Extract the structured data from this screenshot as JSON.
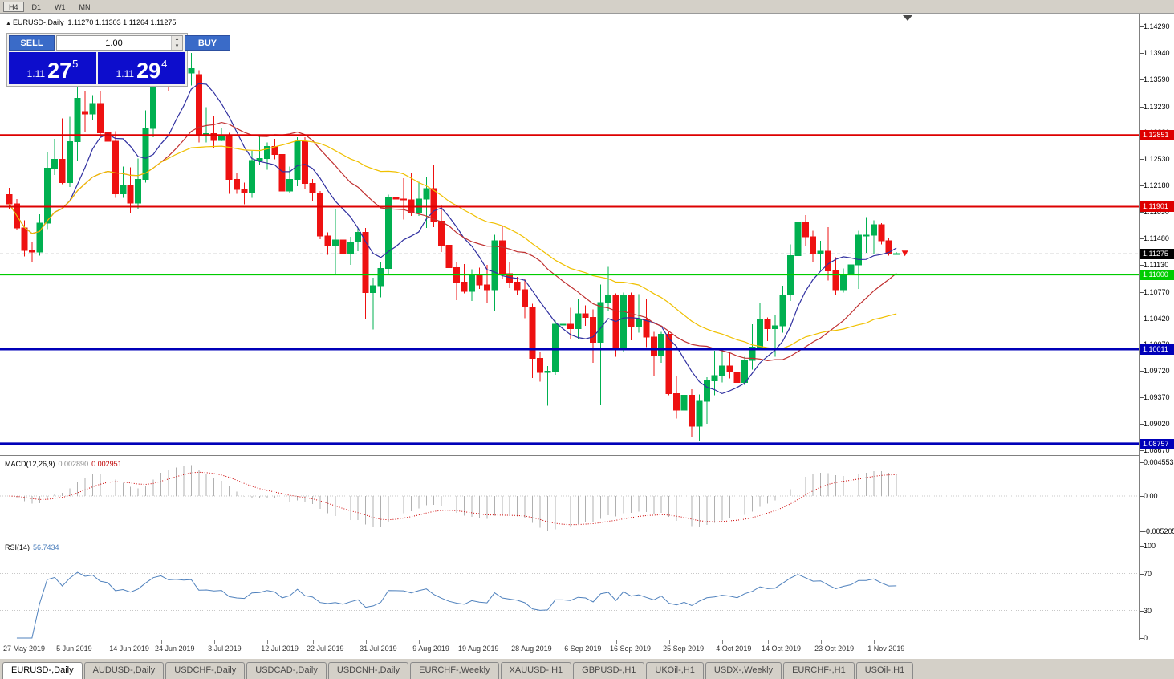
{
  "window": {
    "title_symbol": "EURUSD-,Daily",
    "title_ohlc": "1.11270 1.11303 1.11264 1.11275"
  },
  "toolbar": {
    "timeframes": [
      {
        "label": "H4",
        "pressed": true
      },
      {
        "label": "D1",
        "pressed": false
      },
      {
        "label": "W1",
        "pressed": false
      },
      {
        "label": "MN",
        "pressed": false
      }
    ]
  },
  "trade_panel": {
    "sell_label": "SELL",
    "buy_label": "BUY",
    "volume": "1.00",
    "sell_price": {
      "prefix": "1.11",
      "big": "27",
      "sup": "5"
    },
    "buy_price": {
      "prefix": "1.11",
      "big": "29",
      "sup": "4"
    },
    "button_color": "#3a6bc8",
    "price_box_color": "#0d0dcc"
  },
  "colors": {
    "bull": "#00b050",
    "bear": "#ee1111",
    "ma_fast": "#3030a0",
    "ma_mid": "#c03030",
    "ma_slow": "#f0c000",
    "macd_hist": "#b0b0b0",
    "macd_signal": "#cc0000",
    "rsi_line": "#4f81bd",
    "line_red": "#dd0000",
    "line_green": "#00cc00",
    "line_blue": "#0000b8",
    "current_price_bg": "#000000",
    "bid_line": "#a8a8a8"
  },
  "chart_data": {
    "type": "candlestick",
    "symbol": "EURUSD",
    "timeframe": "Daily",
    "title": "EURUSD-,Daily 1.11270 1.11303 1.11264 1.11275",
    "current_price": "1.11275",
    "price_axis_ticks": [
      "1.14290",
      "1.13940",
      "1.13590",
      "1.13230",
      "1.12880",
      "1.12530",
      "1.12180",
      "1.11830",
      "1.11480",
      "1.11130",
      "1.10770",
      "1.10420",
      "1.10070",
      "1.09720",
      "1.09370",
      "1.09020",
      "1.08670"
    ],
    "hlines": [
      {
        "price": "1.12851",
        "color_key": "line_red",
        "width": 2
      },
      {
        "price": "1.11901",
        "color_key": "line_red",
        "width": 2
      },
      {
        "price": "1.11000",
        "color_key": "line_green",
        "width": 2
      },
      {
        "price": "1.10011",
        "color_key": "line_blue",
        "width": 3
      },
      {
        "price": "1.08757",
        "color_key": "line_blue",
        "width": 3
      }
    ],
    "overlays": [
      {
        "name": "ma-fast-blue",
        "period": 8,
        "color_key": "ma_fast"
      },
      {
        "name": "ma-mid-red",
        "period": 21,
        "color_key": "ma_mid"
      },
      {
        "name": "ma-slow-yellow",
        "period": 34,
        "color_key": "ma_slow"
      }
    ],
    "indicators": {
      "macd": {
        "name": "MACD(12,26,9)",
        "value_main": "0.002890",
        "value_signal": "0.002951",
        "params": [
          12,
          26,
          9
        ],
        "axis": [
          "0.0045536",
          "0.00",
          "-0.0052052"
        ]
      },
      "rsi": {
        "name": "RSI(14)",
        "value": "56.7434",
        "period": 14,
        "axis": [
          "100",
          "70",
          "30",
          "0"
        ],
        "levels": [
          70,
          30
        ]
      }
    },
    "x_labels": [
      {
        "i": 0,
        "label": "27 May 2019"
      },
      {
        "i": 7,
        "label": "5 Jun 2019"
      },
      {
        "i": 14,
        "label": "14 Jun 2019"
      },
      {
        "i": 20,
        "label": "24 Jun 2019"
      },
      {
        "i": 27,
        "label": "3 Jul 2019"
      },
      {
        "i": 34,
        "label": "12 Jul 2019"
      },
      {
        "i": 40,
        "label": "22 Jul 2019"
      },
      {
        "i": 47,
        "label": "31 Jul 2019"
      },
      {
        "i": 54,
        "label": "9 Aug 2019"
      },
      {
        "i": 60,
        "label": "19 Aug 2019"
      },
      {
        "i": 67,
        "label": "28 Aug 2019"
      },
      {
        "i": 74,
        "label": "6 Sep 2019"
      },
      {
        "i": 80,
        "label": "16 Sep 2019"
      },
      {
        "i": 87,
        "label": "25 Sep 2019"
      },
      {
        "i": 94,
        "label": "4 Oct 2019"
      },
      {
        "i": 100,
        "label": "14 Oct 2019"
      },
      {
        "i": 107,
        "label": "23 Oct 2019"
      },
      {
        "i": 114,
        "label": "1 Nov 2019"
      }
    ],
    "candles": [
      [
        1.1206,
        1.1215,
        1.1187,
        1.1194
      ],
      [
        1.1194,
        1.12,
        1.1159,
        1.1162
      ],
      [
        1.1162,
        1.1172,
        1.1124,
        1.1132
      ],
      [
        1.1132,
        1.1144,
        1.1116,
        1.113
      ],
      [
        1.113,
        1.118,
        1.1125,
        1.1168
      ],
      [
        1.1168,
        1.1263,
        1.116,
        1.1241
      ],
      [
        1.1241,
        1.128,
        1.1232,
        1.1253
      ],
      [
        1.1253,
        1.1307,
        1.122,
        1.1222
      ],
      [
        1.1222,
        1.1309,
        1.1216,
        1.1276
      ],
      [
        1.1276,
        1.1348,
        1.1251,
        1.1334
      ],
      [
        1.1316,
        1.1344,
        1.1289,
        1.1313
      ],
      [
        1.1313,
        1.1338,
        1.1305,
        1.1327
      ],
      [
        1.1327,
        1.1344,
        1.1282,
        1.1288
      ],
      [
        1.1288,
        1.1298,
        1.1268,
        1.1277
      ],
      [
        1.1277,
        1.129,
        1.1202,
        1.1207
      ],
      [
        1.1207,
        1.1243,
        1.1202,
        1.1219
      ],
      [
        1.1219,
        1.1242,
        1.1181,
        1.1195
      ],
      [
        1.1195,
        1.1254,
        1.1187,
        1.1226
      ],
      [
        1.1226,
        1.1318,
        1.1222,
        1.1294
      ],
      [
        1.1294,
        1.1378,
        1.1282,
        1.1369
      ],
      [
        1.1369,
        1.1403,
        1.1362,
        1.1399
      ],
      [
        1.1399,
        1.1412,
        1.1344,
        1.1366
      ],
      [
        1.1366,
        1.1391,
        1.135,
        1.1373
      ],
      [
        1.1373,
        1.1388,
        1.1361,
        1.1367
      ],
      [
        1.1367,
        1.1394,
        1.1351,
        1.1373
      ],
      [
        1.1365,
        1.1371,
        1.1275,
        1.1285
      ],
      [
        1.1285,
        1.1322,
        1.1275,
        1.1287
      ],
      [
        1.1287,
        1.1311,
        1.1268,
        1.1278
      ],
      [
        1.1278,
        1.1295,
        1.1277,
        1.1283
      ],
      [
        1.1283,
        1.1288,
        1.1207,
        1.1226
      ],
      [
        1.1226,
        1.1234,
        1.1207,
        1.1213
      ],
      [
        1.1213,
        1.1222,
        1.1193,
        1.1208
      ],
      [
        1.1208,
        1.1264,
        1.1202,
        1.1251
      ],
      [
        1.1251,
        1.1286,
        1.1245,
        1.1254
      ],
      [
        1.1254,
        1.1275,
        1.1239,
        1.127
      ],
      [
        1.127,
        1.128,
        1.1253,
        1.1259
      ],
      [
        1.1259,
        1.1262,
        1.1202,
        1.1211
      ],
      [
        1.1211,
        1.1243,
        1.1208,
        1.1226
      ],
      [
        1.1226,
        1.1282,
        1.1217,
        1.1277
      ],
      [
        1.1277,
        1.1282,
        1.1213,
        1.1221
      ],
      [
        1.1221,
        1.1227,
        1.1198,
        1.1208
      ],
      [
        1.1208,
        1.1211,
        1.1147,
        1.1151
      ],
      [
        1.1151,
        1.1156,
        1.1126,
        1.1139
      ],
      [
        1.1139,
        1.1187,
        1.1101,
        1.1146
      ],
      [
        1.1146,
        1.1152,
        1.1112,
        1.1128
      ],
      [
        1.1128,
        1.115,
        1.1113,
        1.1143
      ],
      [
        1.1143,
        1.1162,
        1.1131,
        1.1156
      ],
      [
        1.1156,
        1.1162,
        1.1041,
        1.1076
      ],
      [
        1.1076,
        1.1096,
        1.1027,
        1.1085
      ],
      [
        1.1085,
        1.1116,
        1.107,
        1.1108
      ],
      [
        1.1108,
        1.1206,
        1.1101,
        1.1202
      ],
      [
        1.1202,
        1.125,
        1.1167,
        1.12
      ],
      [
        1.12,
        1.1228,
        1.1173,
        1.1199
      ],
      [
        1.1199,
        1.1234,
        1.1178,
        1.1182
      ],
      [
        1.1182,
        1.1223,
        1.1178,
        1.12
      ],
      [
        1.12,
        1.123,
        1.1162,
        1.1214
      ],
      [
        1.1214,
        1.1245,
        1.1163,
        1.1171
      ],
      [
        1.1171,
        1.1192,
        1.113,
        1.1139
      ],
      [
        1.1139,
        1.1163,
        1.109,
        1.1109
      ],
      [
        1.1109,
        1.1116,
        1.1066,
        1.109
      ],
      [
        1.109,
        1.1114,
        1.1075,
        1.1078
      ],
      [
        1.1078,
        1.1107,
        1.1065,
        1.11
      ],
      [
        1.11,
        1.1109,
        1.1081,
        1.1086
      ],
      [
        1.1086,
        1.1113,
        1.1062,
        1.108
      ],
      [
        1.108,
        1.1153,
        1.1051,
        1.1145
      ],
      [
        1.1145,
        1.1164,
        1.1094,
        1.1101
      ],
      [
        1.1101,
        1.1116,
        1.1082,
        1.109
      ],
      [
        1.109,
        1.1097,
        1.1073,
        1.108
      ],
      [
        1.108,
        1.1094,
        1.1042,
        1.1057
      ],
      [
        1.1057,
        1.1061,
        1.0963,
        1.0989
      ],
      [
        1.0989,
        1.0998,
        1.0958,
        1.097
      ],
      [
        1.097,
        1.0979,
        1.0926,
        1.0972
      ],
      [
        1.0972,
        1.1039,
        1.0967,
        1.1034
      ],
      [
        1.1034,
        1.1085,
        1.1024,
        1.1034
      ],
      [
        1.1034,
        1.1056,
        1.1015,
        1.1028
      ],
      [
        1.1028,
        1.1067,
        1.1015,
        1.1048
      ],
      [
        1.1048,
        1.1059,
        1.1032,
        1.1043
      ],
      [
        1.1043,
        1.1054,
        1.0983,
        1.101
      ],
      [
        1.101,
        1.1087,
        1.0927,
        1.1063
      ],
      [
        1.1063,
        1.111,
        1.1052,
        1.1073
      ],
      [
        1.1073,
        1.1075,
        1.0991,
        1.1003
      ],
      [
        1.1003,
        1.1076,
        1.0998,
        1.1072
      ],
      [
        1.1072,
        1.1076,
        1.1013,
        1.1031
      ],
      [
        1.1031,
        1.1074,
        1.1023,
        1.1041
      ],
      [
        1.1041,
        1.1068,
        1.1004,
        1.1017
      ],
      [
        1.1017,
        1.1024,
        1.0966,
        1.0992
      ],
      [
        1.0992,
        1.1024,
        1.0983,
        1.1021
      ],
      [
        1.1021,
        1.1024,
        1.094,
        1.0942
      ],
      [
        1.0942,
        1.0966,
        1.0909,
        1.092
      ],
      [
        1.092,
        1.0958,
        1.0904,
        1.094
      ],
      [
        1.094,
        1.0948,
        1.0885,
        1.0899
      ],
      [
        1.0899,
        1.0941,
        1.0879,
        1.0932
      ],
      [
        1.0932,
        1.0964,
        1.0902,
        1.0959
      ],
      [
        1.0959,
        1.0999,
        1.094,
        1.0966
      ],
      [
        1.0966,
        1.0999,
        1.0957,
        1.0979
      ],
      [
        1.0979,
        1.0996,
        1.0962,
        1.0971
      ],
      [
        1.0971,
        1.0995,
        1.0941,
        1.0957
      ],
      [
        1.0957,
        1.0991,
        1.0953,
        1.0986
      ],
      [
        1.0986,
        1.1034,
        1.0974,
        1.1004
      ],
      [
        1.1004,
        1.1063,
        1.1002,
        1.1041
      ],
      [
        1.1041,
        1.1043,
        1.1012,
        1.1028
      ],
      [
        1.1028,
        1.1047,
        1.0991,
        1.1032
      ],
      [
        1.1032,
        1.1085,
        1.1023,
        1.1073
      ],
      [
        1.1073,
        1.114,
        1.1065,
        1.1125
      ],
      [
        1.1125,
        1.1172,
        1.1112,
        1.117
      ],
      [
        1.117,
        1.1179,
        1.1138,
        1.115
      ],
      [
        1.115,
        1.1158,
        1.1117,
        1.1128
      ],
      [
        1.1128,
        1.1145,
        1.1106,
        1.1131
      ],
      [
        1.1131,
        1.1163,
        1.1092,
        1.1105
      ],
      [
        1.1105,
        1.1123,
        1.1073,
        1.108
      ],
      [
        1.108,
        1.1108,
        1.1076,
        1.11
      ],
      [
        1.11,
        1.1118,
        1.1073,
        1.1113
      ],
      [
        1.1113,
        1.1158,
        1.1081,
        1.1152
      ],
      [
        1.1152,
        1.1176,
        1.1129,
        1.1152
      ],
      [
        1.1152,
        1.1172,
        1.1128,
        1.1166
      ],
      [
        1.1166,
        1.1168,
        1.114,
        1.1145
      ],
      [
        1.1145,
        1.1148,
        1.1125,
        1.1127
      ],
      [
        1.1127,
        1.113,
        1.1126,
        1.1128
      ]
    ]
  },
  "tabs": [
    {
      "label": "EURUSD-,Daily",
      "active": true
    },
    {
      "label": "AUDUSD-,Daily",
      "active": false
    },
    {
      "label": "USDCHF-,Daily",
      "active": false
    },
    {
      "label": "USDCAD-,Daily",
      "active": false
    },
    {
      "label": "USDCNH-,Daily",
      "active": false
    },
    {
      "label": "EURCHF-,Weekly",
      "active": false
    },
    {
      "label": "XAUUSD-,H1",
      "active": false
    },
    {
      "label": "GBPUSD-,H1",
      "active": false
    },
    {
      "label": "UKOil-,H1",
      "active": false
    },
    {
      "label": "USDX-,Weekly",
      "active": false
    },
    {
      "label": "EURCHF-,H1",
      "active": false
    },
    {
      "label": "USOil-,H1",
      "active": false
    }
  ]
}
